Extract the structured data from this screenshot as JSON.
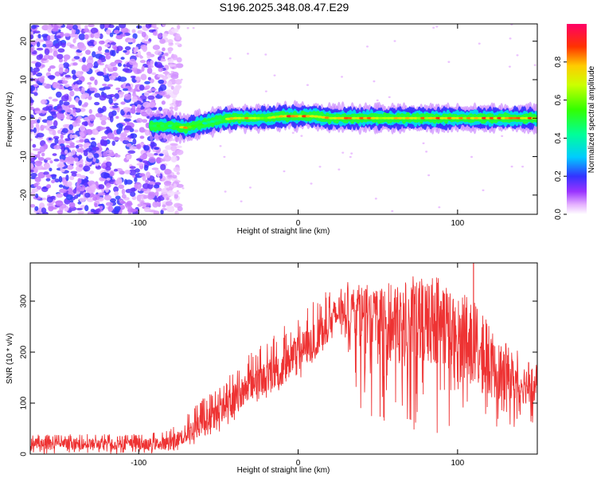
{
  "title": "S196.2025.348.08.47.E29",
  "chart_data": [
    {
      "type": "heatmap",
      "name": "spectrogram",
      "xlabel": "Height of straight line (km)",
      "ylabel": "Frequency (Hz)",
      "xlim": [
        -168,
        150
      ],
      "ylim": [
        -25,
        24.5
      ],
      "xticks": [
        -100,
        0,
        100
      ],
      "yticks": [
        -20,
        -10,
        0,
        10,
        20
      ],
      "colorbar": {
        "label": "Normalized spectral amplitude",
        "range": [
          0,
          1
        ],
        "ticks": [
          0.0,
          0.2,
          0.4,
          0.6,
          0.8
        ]
      },
      "noise_region_x": [
        -168,
        -80
      ],
      "signal_band_frequency_hz": 0,
      "signal_band_x": [
        -92,
        150
      ],
      "description_series": {
        "x": [
          -92,
          -80,
          -70,
          -60,
          -50,
          -40,
          -30,
          -20,
          -10,
          0,
          10,
          20,
          40,
          60,
          80,
          100,
          120,
          140,
          150
        ],
        "frequency_hz": [
          -2,
          -2,
          -2.5,
          -1.5,
          -0.5,
          0,
          0,
          0,
          0.5,
          0.5,
          0.5,
          0,
          0,
          0,
          0,
          0,
          0,
          0,
          0
        ],
        "amplitude": [
          0.5,
          0.55,
          0.85,
          0.5,
          0.5,
          0.85,
          0.85,
          0.6,
          0.9,
          0.9,
          0.9,
          0.85,
          0.85,
          0.8,
          0.85,
          0.85,
          0.9,
          0.85,
          0.85
        ]
      }
    },
    {
      "type": "line",
      "name": "snr",
      "xlabel": "Height of straight line (km)",
      "ylabel": "SNR (10 * v/v)",
      "xlim": [
        -168,
        150
      ],
      "ylim": [
        0,
        375
      ],
      "xticks": [
        -100,
        0,
        100
      ],
      "yticks": [
        0,
        100,
        200,
        300
      ],
      "color": "#ee3333",
      "series": [
        {
          "name": "SNR",
          "x": [
            -168,
            -150,
            -130,
            -110,
            -90,
            -80,
            -70,
            -60,
            -50,
            -40,
            -30,
            -20,
            -10,
            0,
            10,
            20,
            30,
            40,
            50,
            60,
            70,
            80,
            90,
            100,
            110,
            120,
            130,
            140,
            150
          ],
          "y": [
            20,
            20,
            20,
            20,
            20,
            22,
            40,
            60,
            80,
            110,
            140,
            150,
            170,
            200,
            220,
            260,
            290,
            270,
            250,
            250,
            250,
            260,
            260,
            220,
            200,
            170,
            150,
            140,
            130
          ],
          "upper_envelope": [
            40,
            38,
            40,
            38,
            42,
            50,
            80,
            110,
            130,
            170,
            200,
            220,
            250,
            270,
            300,
            330,
            340,
            320,
            330,
            340,
            350,
            350,
            350,
            330,
            300,
            260,
            220,
            200,
            175
          ],
          "lower_envelope": [
            0,
            0,
            0,
            0,
            0,
            5,
            10,
            25,
            40,
            60,
            90,
            110,
            120,
            140,
            170,
            200,
            220,
            80,
            60,
            60,
            40,
            40,
            40,
            40,
            40,
            40,
            50,
            50,
            50
          ]
        }
      ],
      "spike": {
        "x": 110,
        "y": 375
      }
    }
  ]
}
